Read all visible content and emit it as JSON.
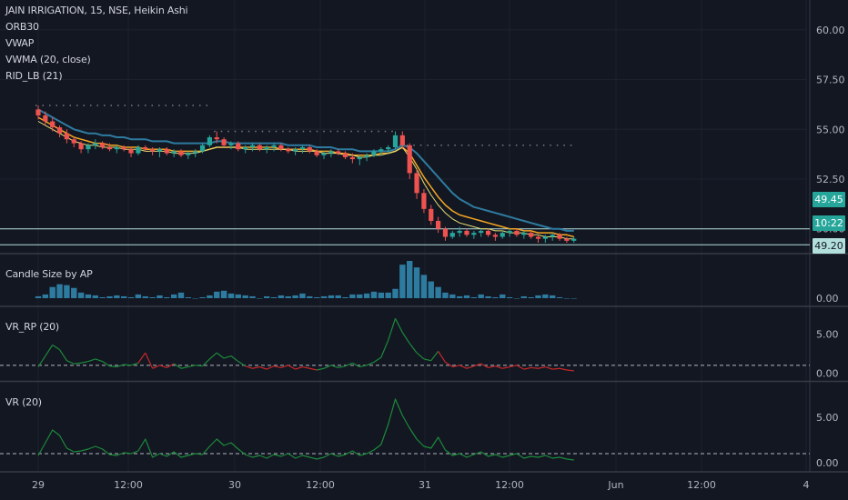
{
  "colors": {
    "background": "#131722",
    "grid": "#1e222d",
    "separator": "#363a45",
    "axis_text": "#b2b5be",
    "up_candle": "#26a69a",
    "down_candle": "#ef5350",
    "volume_bar": "#2e7ba0",
    "vwap": "#2e7ba0",
    "vwma": "#f5a623",
    "rid_lb": "#e7df72",
    "orb_dots": "#787b86",
    "level_line": "#b2dfdb",
    "vr_rp_up": "#1b8a3a",
    "vr_rp_down": "#c62828",
    "vr": "#1b8a3a",
    "ref_dash": "#b2b5be",
    "last_price_bg": "#26a69a",
    "last_price_bg2": "#b2dfdb"
  },
  "legend": {
    "symbol_line": "JAIN IRRIGATION, 15, NSE, Heikin Ashi",
    "orb": "ORB30",
    "vwap": "VWAP",
    "vwma": "VWMA (20, close)",
    "rid": "RID_LB (21)"
  },
  "price_tags": {
    "last_price": "49.45",
    "countdown": "10:22",
    "level_low": "49.20",
    "level_high": "50.00"
  },
  "chart_data": [
    {
      "type": "candlestick",
      "title": "JAIN IRRIGATION, 15, NSE, Heikin Ashi",
      "x_ticks": [
        "29",
        "12:00",
        "30",
        "12:00",
        "31",
        "12:00",
        "Jun",
        "12:00",
        "4"
      ],
      "y_ticks": [
        "60.00",
        "57.50",
        "55.00",
        "52.50",
        "50.00"
      ],
      "ylim": [
        48.8,
        61.5
      ],
      "candles_ohlc": [
        [
          56.0,
          56.2,
          55.5,
          55.7
        ],
        [
          55.7,
          55.9,
          55.2,
          55.4
        ],
        [
          55.4,
          55.6,
          54.9,
          55.1
        ],
        [
          55.1,
          55.2,
          54.6,
          54.8
        ],
        [
          54.8,
          55.0,
          54.3,
          54.5
        ],
        [
          54.5,
          54.6,
          54.1,
          54.3
        ],
        [
          54.3,
          54.4,
          53.8,
          54.0
        ],
        [
          54.0,
          54.3,
          53.8,
          54.2
        ],
        [
          54.2,
          54.5,
          54.0,
          54.3
        ],
        [
          54.3,
          54.4,
          54.0,
          54.1
        ],
        [
          54.1,
          54.3,
          53.9,
          54.0
        ],
        [
          54.0,
          54.2,
          53.8,
          54.1
        ],
        [
          54.1,
          54.2,
          53.9,
          54.0
        ],
        [
          54.0,
          54.1,
          53.6,
          53.8
        ],
        [
          53.8,
          54.2,
          53.7,
          54.1
        ],
        [
          54.1,
          54.2,
          53.9,
          54.0
        ],
        [
          54.0,
          54.1,
          53.7,
          53.9
        ],
        [
          53.9,
          54.1,
          53.6,
          54.0
        ],
        [
          54.0,
          54.1,
          53.7,
          53.8
        ],
        [
          53.8,
          54.0,
          53.6,
          53.9
        ],
        [
          53.9,
          54.0,
          53.6,
          53.7
        ],
        [
          53.7,
          53.9,
          53.5,
          53.8
        ],
        [
          53.8,
          54.0,
          53.6,
          53.9
        ],
        [
          53.9,
          54.3,
          53.8,
          54.2
        ],
        [
          54.2,
          54.7,
          54.1,
          54.6
        ],
        [
          54.6,
          54.9,
          54.3,
          54.5
        ],
        [
          54.5,
          54.6,
          54.1,
          54.2
        ],
        [
          54.2,
          54.4,
          54.0,
          54.3
        ],
        [
          54.3,
          54.4,
          53.9,
          54.0
        ],
        [
          54.0,
          54.2,
          53.8,
          54.1
        ],
        [
          54.1,
          54.3,
          53.9,
          54.2
        ],
        [
          54.2,
          54.3,
          53.9,
          54.0
        ],
        [
          54.0,
          54.2,
          53.8,
          54.1
        ],
        [
          54.1,
          54.3,
          53.9,
          54.2
        ],
        [
          54.2,
          54.3,
          53.9,
          54.0
        ],
        [
          54.0,
          54.1,
          53.8,
          53.9
        ],
        [
          53.9,
          54.1,
          53.7,
          54.0
        ],
        [
          54.0,
          54.2,
          53.8,
          54.1
        ],
        [
          54.1,
          54.2,
          53.8,
          53.9
        ],
        [
          53.9,
          54.0,
          53.6,
          53.7
        ],
        [
          53.7,
          53.9,
          53.5,
          53.8
        ],
        [
          53.8,
          54.0,
          53.6,
          53.9
        ],
        [
          53.9,
          54.0,
          53.7,
          53.8
        ],
        [
          53.8,
          53.9,
          53.5,
          53.6
        ],
        [
          53.6,
          53.8,
          53.3,
          53.5
        ],
        [
          53.5,
          53.7,
          53.2,
          53.6
        ],
        [
          53.6,
          53.8,
          53.4,
          53.7
        ],
        [
          53.7,
          54.0,
          53.6,
          53.9
        ],
        [
          53.9,
          54.1,
          53.7,
          54.0
        ],
        [
          54.0,
          54.2,
          53.8,
          54.1
        ],
        [
          54.1,
          54.9,
          54.0,
          54.7
        ],
        [
          54.7,
          54.9,
          54.0,
          54.2
        ],
        [
          54.2,
          54.3,
          52.5,
          52.8
        ],
        [
          52.8,
          53.0,
          51.5,
          51.8
        ],
        [
          51.8,
          52.0,
          50.8,
          51.0
        ],
        [
          51.0,
          51.2,
          50.2,
          50.4
        ],
        [
          50.4,
          50.6,
          49.8,
          50.0
        ],
        [
          50.0,
          50.1,
          49.4,
          49.6
        ],
        [
          49.6,
          49.9,
          49.5,
          49.8
        ],
        [
          49.8,
          50.1,
          49.6,
          49.9
        ],
        [
          49.9,
          50.0,
          49.6,
          49.7
        ],
        [
          49.7,
          49.9,
          49.5,
          49.8
        ],
        [
          49.8,
          50.0,
          49.6,
          49.9
        ],
        [
          49.9,
          50.0,
          49.6,
          49.7
        ],
        [
          49.7,
          49.8,
          49.4,
          49.6
        ],
        [
          49.6,
          49.9,
          49.5,
          49.8
        ],
        [
          49.8,
          50.0,
          49.6,
          49.9
        ],
        [
          49.9,
          50.0,
          49.6,
          49.7
        ],
        [
          49.7,
          49.9,
          49.5,
          49.8
        ],
        [
          49.8,
          49.9,
          49.5,
          49.6
        ],
        [
          49.6,
          49.7,
          49.3,
          49.5
        ],
        [
          49.5,
          49.7,
          49.3,
          49.6
        ],
        [
          49.6,
          49.8,
          49.4,
          49.7
        ],
        [
          49.7,
          49.8,
          49.4,
          49.5
        ],
        [
          49.5,
          49.6,
          49.3,
          49.4
        ],
        [
          49.4,
          49.6,
          49.3,
          49.5
        ]
      ],
      "vwap": [
        56.0,
        55.8,
        55.6,
        55.4,
        55.2,
        55.0,
        54.9,
        54.8,
        54.8,
        54.7,
        54.7,
        54.6,
        54.6,
        54.5,
        54.5,
        54.5,
        54.4,
        54.4,
        54.4,
        54.3,
        54.3,
        54.3,
        54.3,
        54.3,
        54.3,
        54.4,
        54.4,
        54.3,
        54.3,
        54.3,
        54.3,
        54.3,
        54.3,
        54.3,
        54.3,
        54.2,
        54.2,
        54.2,
        54.2,
        54.1,
        54.1,
        54.1,
        54.0,
        54.0,
        54.0,
        53.9,
        53.9,
        53.9,
        53.9,
        53.9,
        54.0,
        54.2,
        54.1,
        53.8,
        53.4,
        53.0,
        52.6,
        52.2,
        51.8,
        51.5,
        51.3,
        51.1,
        51.0,
        50.9,
        50.8,
        50.7,
        50.6,
        50.5,
        50.4,
        50.3,
        50.2,
        50.1,
        50.0,
        50.0,
        49.9,
        49.9
      ],
      "vwma": [
        55.6,
        55.4,
        55.2,
        55.0,
        54.8,
        54.6,
        54.5,
        54.4,
        54.3,
        54.3,
        54.2,
        54.2,
        54.1,
        54.1,
        54.1,
        54.0,
        54.0,
        54.0,
        54.0,
        53.9,
        53.9,
        53.9,
        53.9,
        53.9,
        54.0,
        54.1,
        54.1,
        54.1,
        54.1,
        54.1,
        54.1,
        54.1,
        54.1,
        54.1,
        54.0,
        54.0,
        54.0,
        54.0,
        54.0,
        53.9,
        53.9,
        53.9,
        53.8,
        53.8,
        53.7,
        53.7,
        53.7,
        53.7,
        53.8,
        53.8,
        53.9,
        54.1,
        53.8,
        53.2,
        52.6,
        52.1,
        51.6,
        51.2,
        50.9,
        50.7,
        50.6,
        50.5,
        50.4,
        50.3,
        50.2,
        50.1,
        50.0,
        50.0,
        49.9,
        49.9,
        49.8,
        49.8,
        49.8,
        49.7,
        49.7,
        49.6
      ],
      "rid_lb": [
        55.4,
        55.2,
        55.0,
        54.8,
        54.6,
        54.4,
        54.3,
        54.2,
        54.2,
        54.1,
        54.1,
        54.1,
        54.0,
        54.0,
        54.0,
        53.9,
        53.9,
        53.9,
        53.9,
        53.8,
        53.8,
        53.8,
        53.8,
        53.9,
        54.0,
        54.1,
        54.1,
        54.1,
        54.1,
        54.0,
        54.0,
        54.0,
        54.0,
        54.0,
        54.0,
        54.0,
        53.9,
        53.9,
        53.9,
        53.9,
        53.8,
        53.8,
        53.8,
        53.7,
        53.7,
        53.6,
        53.6,
        53.7,
        53.7,
        53.8,
        53.9,
        54.1,
        53.6,
        53.0,
        52.3,
        51.7,
        51.2,
        50.8,
        50.5,
        50.3,
        50.2,
        50.1,
        50.0,
        50.0,
        49.9,
        49.9,
        49.8,
        49.8,
        49.8,
        49.7,
        49.7,
        49.6,
        49.6,
        49.6,
        49.5,
        49.5
      ],
      "orb_levels": [
        {
          "from": 0,
          "to": 24,
          "high": 56.2,
          "low": 54.1
        },
        {
          "from": 25,
          "to": 50,
          "high": 54.9,
          "low": 53.6
        },
        {
          "from": 51,
          "to": 75,
          "high": 54.2,
          "low": 49.3
        }
      ],
      "horizontal_levels": [
        50.0,
        49.2
      ],
      "last_price": 49.45
    },
    {
      "type": "bar",
      "title": "Candle Size by AP",
      "y_ticks": [
        "0.00"
      ],
      "ylim": [
        0,
        4.0
      ],
      "values": [
        0.2,
        0.4,
        1.2,
        1.5,
        1.4,
        1.1,
        0.6,
        0.4,
        0.3,
        0.1,
        0.2,
        0.3,
        0.2,
        0.1,
        0.4,
        0.2,
        0.1,
        0.3,
        0.1,
        0.4,
        0.6,
        0.1,
        0.0,
        0.1,
        0.3,
        0.7,
        0.8,
        0.5,
        0.4,
        0.3,
        0.2,
        0.0,
        0.2,
        0.1,
        0.3,
        0.2,
        0.3,
        0.5,
        0.2,
        0.1,
        0.2,
        0.3,
        0.3,
        0.1,
        0.4,
        0.4,
        0.5,
        0.7,
        0.6,
        0.6,
        1.0,
        3.6,
        4.0,
        3.3,
        2.5,
        1.8,
        1.2,
        0.6,
        0.4,
        0.2,
        0.3,
        0.1,
        0.4,
        0.2,
        0.1,
        0.4,
        0.1,
        0.0,
        0.2,
        0.1,
        0.3,
        0.4,
        0.3,
        0.1,
        0.0,
        0.0
      ]
    },
    {
      "type": "line",
      "title": "VR_RP (20)",
      "y_ticks": [
        "5.00",
        "0.00"
      ],
      "ylim": [
        -0.3,
        8.2
      ],
      "reference_line": 1.0,
      "values": [
        0.8,
        2.2,
        3.6,
        3.0,
        1.6,
        1.2,
        1.3,
        1.5,
        1.8,
        1.5,
        0.9,
        0.8,
        1.1,
        1.0,
        1.3,
        2.6,
        0.6,
        1.0,
        0.7,
        1.2,
        0.6,
        0.8,
        1.0,
        0.9,
        1.8,
        2.6,
        1.9,
        2.2,
        1.5,
        0.9,
        0.6,
        0.8,
        0.5,
        0.9,
        0.7,
        1.0,
        0.5,
        0.8,
        0.6,
        0.4,
        0.6,
        1.0,
        0.7,
        0.9,
        1.3,
        0.8,
        1.0,
        1.4,
        2.0,
        4.2,
        7.0,
        5.2,
        3.8,
        2.6,
        1.8,
        1.6,
        2.8,
        1.4,
        0.8,
        1.0,
        0.6,
        0.9,
        1.2,
        0.7,
        0.9,
        0.6,
        0.8,
        1.0,
        0.5,
        0.7,
        0.6,
        0.8,
        0.5,
        0.6,
        0.4,
        0.3
      ],
      "down_flags": [
        0,
        0,
        0,
        0,
        0,
        0,
        0,
        0,
        0,
        0,
        0,
        0,
        0,
        0,
        0,
        1,
        1,
        1,
        1,
        1,
        0,
        0,
        0,
        0,
        0,
        0,
        0,
        0,
        0,
        0,
        1,
        1,
        1,
        1,
        1,
        1,
        1,
        1,
        1,
        1,
        0,
        0,
        0,
        0,
        0,
        0,
        0,
        0,
        0,
        0,
        0,
        0,
        0,
        0,
        0,
        0,
        0,
        1,
        1,
        1,
        1,
        1,
        1,
        1,
        1,
        1,
        1,
        1,
        1,
        1,
        1,
        1,
        1,
        1,
        1,
        1
      ]
    },
    {
      "type": "line",
      "title": "VR (20)",
      "y_ticks": [
        "5.00",
        "0.00"
      ],
      "ylim": [
        -0.3,
        8.2
      ],
      "reference_line": 1.0,
      "values": [
        0.8,
        2.2,
        3.6,
        3.0,
        1.6,
        1.2,
        1.3,
        1.5,
        1.8,
        1.5,
        0.9,
        0.8,
        1.1,
        1.0,
        1.3,
        2.6,
        0.6,
        1.0,
        0.7,
        1.2,
        0.6,
        0.8,
        1.0,
        0.9,
        1.8,
        2.6,
        1.9,
        2.2,
        1.5,
        0.9,
        0.6,
        0.8,
        0.5,
        0.9,
        0.7,
        1.0,
        0.5,
        0.8,
        0.6,
        0.4,
        0.6,
        1.0,
        0.7,
        0.9,
        1.3,
        0.8,
        1.0,
        1.4,
        2.0,
        4.2,
        7.0,
        5.2,
        3.8,
        2.6,
        1.8,
        1.6,
        2.8,
        1.4,
        0.8,
        1.0,
        0.6,
        0.9,
        1.2,
        0.7,
        0.9,
        0.6,
        0.8,
        1.0,
        0.5,
        0.7,
        0.6,
        0.8,
        0.5,
        0.6,
        0.4,
        0.3
      ]
    }
  ]
}
